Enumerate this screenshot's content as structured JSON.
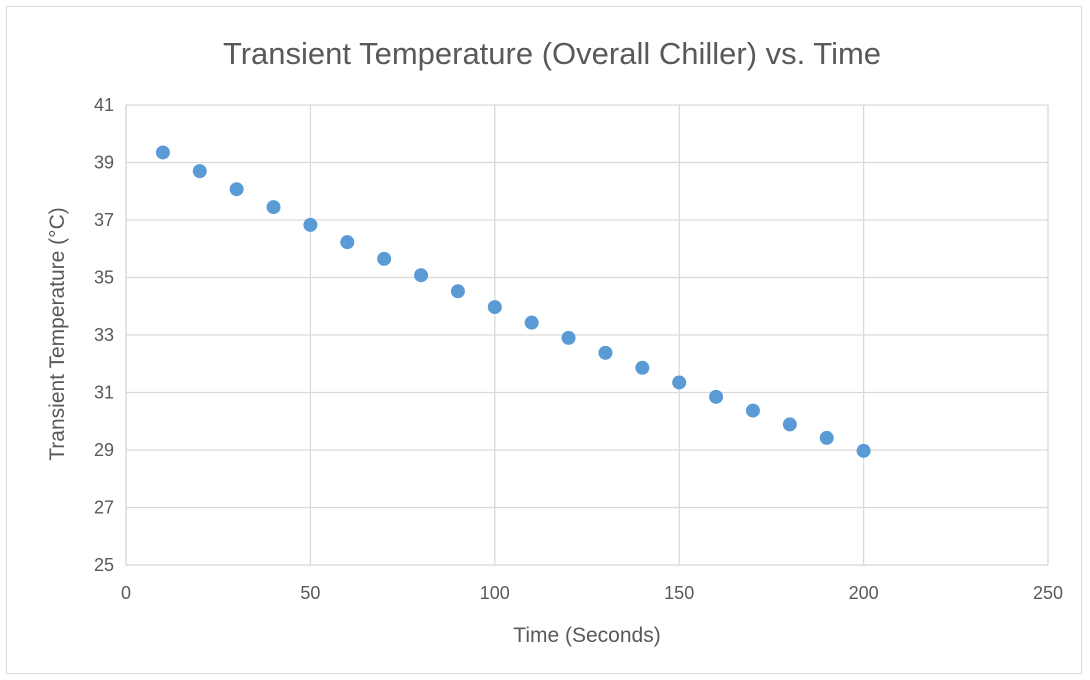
{
  "chart_data": {
    "type": "scatter",
    "title": "Transient Temperature (Overall Chiller) vs. Time",
    "xlabel": "Time (Seconds)",
    "ylabel": "Transient Temperature (°C)",
    "xlim": [
      0,
      250
    ],
    "ylim": [
      25,
      41
    ],
    "xticks": [
      "0",
      "50",
      "100",
      "150",
      "200",
      "250"
    ],
    "yticks": [
      "25",
      "27",
      "29",
      "31",
      "33",
      "35",
      "37",
      "39",
      "41"
    ],
    "grid": true,
    "legend": "none",
    "series": [
      {
        "color": "#5b9bd5",
        "points": [
          {
            "x": 10,
            "y": 39.35
          },
          {
            "x": 20,
            "y": 38.7
          },
          {
            "x": 30,
            "y": 38.07
          },
          {
            "x": 40,
            "y": 37.45
          },
          {
            "x": 50,
            "y": 36.83
          },
          {
            "x": 60,
            "y": 36.23
          },
          {
            "x": 70,
            "y": 35.65
          },
          {
            "x": 80,
            "y": 35.08
          },
          {
            "x": 90,
            "y": 34.52
          },
          {
            "x": 100,
            "y": 33.97
          },
          {
            "x": 110,
            "y": 33.43
          },
          {
            "x": 120,
            "y": 32.9
          },
          {
            "x": 130,
            "y": 32.38
          },
          {
            "x": 140,
            "y": 31.86
          },
          {
            "x": 150,
            "y": 31.35
          },
          {
            "x": 160,
            "y": 30.85
          },
          {
            "x": 170,
            "y": 30.37
          },
          {
            "x": 180,
            "y": 29.89
          },
          {
            "x": 190,
            "y": 29.42
          },
          {
            "x": 200,
            "y": 28.97
          }
        ]
      }
    ]
  }
}
